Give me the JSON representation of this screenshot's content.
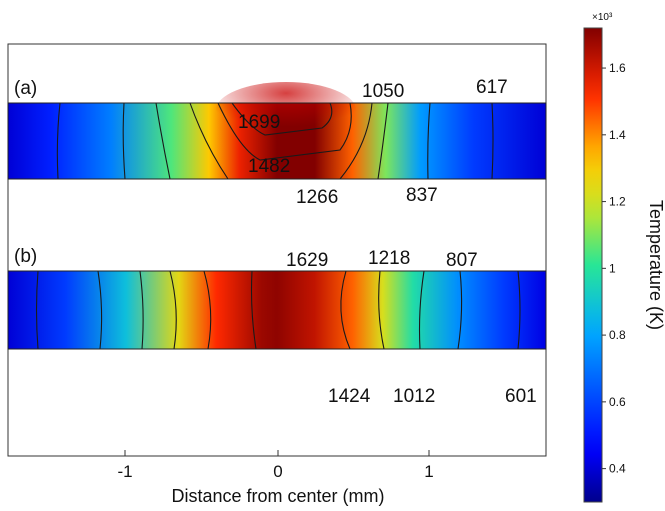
{
  "chart_data": {
    "type": "heatmap",
    "xlabel": "Distance from center (mm)",
    "x_ticks": [
      "-1",
      "0",
      "1"
    ],
    "xlim": [
      -1.78,
      1.78
    ],
    "colorbar": {
      "title": "Temperature (K)",
      "multiplier": "×10³",
      "tick_labels": [
        "0.4",
        "0.6",
        "0.8",
        "1",
        "1.2",
        "1.4",
        "1.6"
      ],
      "tick_values": [
        0.4,
        0.6,
        0.8,
        1.0,
        1.2,
        1.4,
        1.6
      ],
      "range": [
        0.3,
        1.72
      ],
      "colormap": "jet"
    },
    "panels": [
      {
        "label": "(a)",
        "profile": [
          {
            "x": -1.78,
            "t": 0.4
          },
          {
            "x": -1.5,
            "t": 0.52
          },
          {
            "x": -1.1,
            "t": 0.72
          },
          {
            "x": -0.7,
            "t": 1.05
          },
          {
            "x": -0.45,
            "t": 1.32
          },
          {
            "x": -0.25,
            "t": 1.55
          },
          {
            "x": 0.0,
            "t": 1.72
          },
          {
            "x": 0.25,
            "t": 1.74
          },
          {
            "x": 0.5,
            "t": 1.45
          },
          {
            "x": 0.72,
            "t": 1.1
          },
          {
            "x": 0.95,
            "t": 0.78
          },
          {
            "x": 1.3,
            "t": 0.58
          },
          {
            "x": 1.78,
            "t": 0.4
          }
        ],
        "contour_labels": [
          {
            "text": "1699",
            "x": -0.1,
            "pos": "inside"
          },
          {
            "text": "1050",
            "x": 0.59,
            "pos": "above"
          },
          {
            "text": "617",
            "x": 1.38,
            "pos": "above"
          },
          {
            "text": "1482",
            "x": -0.18,
            "pos": "lower-inside"
          },
          {
            "text": "1266",
            "x": 0.25,
            "pos": "below"
          },
          {
            "text": "837",
            "x": 0.96,
            "pos": "below"
          }
        ]
      },
      {
        "label": "(b)",
        "profile": [
          {
            "x": -1.78,
            "t": 0.4
          },
          {
            "x": -1.4,
            "t": 0.58
          },
          {
            "x": -1.0,
            "t": 0.88
          },
          {
            "x": -0.65,
            "t": 1.25
          },
          {
            "x": -0.4,
            "t": 1.52
          },
          {
            "x": -0.1,
            "t": 1.68
          },
          {
            "x": 0.0,
            "t": 1.7
          },
          {
            "x": 0.25,
            "t": 1.62
          },
          {
            "x": 0.5,
            "t": 1.45
          },
          {
            "x": 0.7,
            "t": 1.22
          },
          {
            "x": 0.9,
            "t": 0.98
          },
          {
            "x": 1.2,
            "t": 0.75
          },
          {
            "x": 1.5,
            "t": 0.58
          },
          {
            "x": 1.78,
            "t": 0.42
          }
        ],
        "contour_labels": [
          {
            "text": "1629",
            "x": 0.17,
            "pos": "above"
          },
          {
            "text": "1218",
            "x": 0.69,
            "pos": "above"
          },
          {
            "text": "807",
            "x": 1.18,
            "pos": "above"
          },
          {
            "text": "1424",
            "x": 0.45,
            "pos": "below"
          },
          {
            "text": "1012",
            "x": 0.87,
            "pos": "below"
          },
          {
            "text": "601",
            "x": 1.53,
            "pos": "below"
          }
        ]
      }
    ]
  }
}
